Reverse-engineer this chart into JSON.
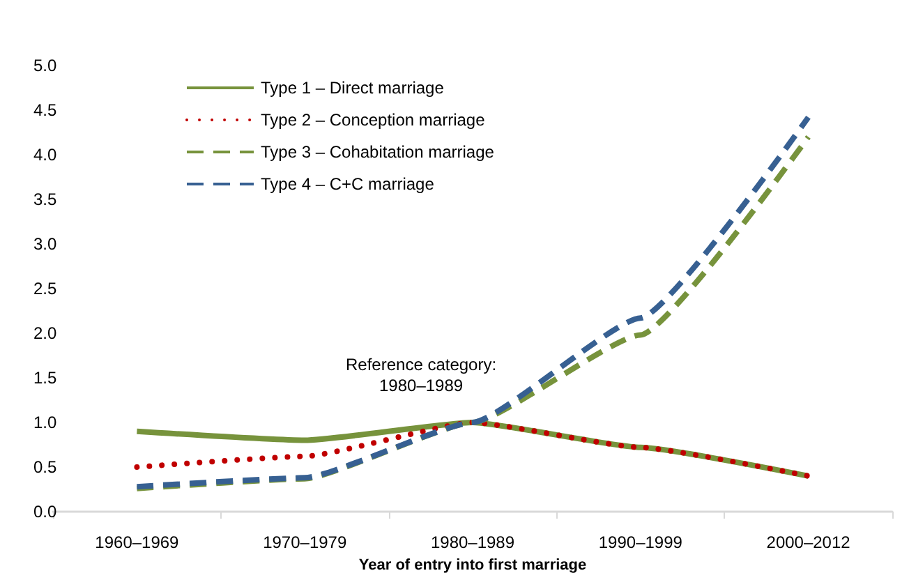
{
  "chart_data": {
    "type": "line",
    "xlabel": "Year of entry into first marriage",
    "categories": [
      "1960–1969",
      "1970–1979",
      "1980–1989",
      "1990–1999",
      "2000–2012"
    ],
    "series": [
      {
        "name": "Type 1 – Direct marriage",
        "color": "#77933c",
        "line_style": "solid",
        "values": [
          0.9,
          0.8,
          1.0,
          0.72,
          0.4
        ]
      },
      {
        "name": "Type 2 – Conception marriage",
        "color": "#c00000",
        "line_style": "dotted",
        "values": [
          0.5,
          0.62,
          1.0,
          0.72,
          0.4
        ]
      },
      {
        "name": "Type 3 – Cohabitation marriage",
        "color": "#77933c",
        "line_style": "dashed",
        "values": [
          0.26,
          0.37,
          1.0,
          1.98,
          4.2
        ]
      },
      {
        "name": "Type 4 – C+C marriage",
        "color": "#376092",
        "line_style": "dashed",
        "values": [
          0.28,
          0.38,
          1.0,
          2.17,
          4.42
        ]
      }
    ],
    "ylim": [
      0,
      5
    ],
    "yticks": [
      {
        "value": 0,
        "label": "0.0"
      },
      0.5,
      {
        "value": 1,
        "label": "1.0"
      },
      1.5,
      {
        "value": 2,
        "label": "2.0"
      },
      2.5,
      {
        "value": 3,
        "label": "3.0"
      },
      3.5,
      {
        "value": 4,
        "label": "4.0"
      },
      4.5,
      {
        "value": 5,
        "label": "5.0"
      }
    ],
    "annotations": [
      "Reference category:\n1980–1989"
    ],
    "grid": false,
    "legend": "top left",
    "marker": "none"
  }
}
